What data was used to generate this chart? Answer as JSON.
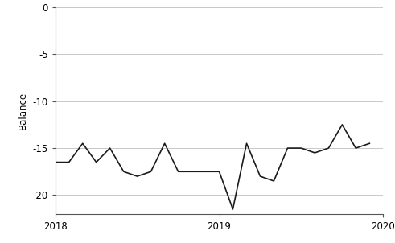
{
  "x": [
    2018.0,
    2018.083,
    2018.167,
    2018.25,
    2018.333,
    2018.417,
    2018.5,
    2018.583,
    2018.667,
    2018.75,
    2018.833,
    2018.917,
    2019.0,
    2019.083,
    2019.167,
    2019.25,
    2019.333,
    2019.417,
    2019.5,
    2019.583,
    2019.667,
    2019.75,
    2019.833,
    2019.917
  ],
  "y": [
    -16.5,
    -16.5,
    -14.5,
    -16.5,
    -15.0,
    -17.5,
    -18.0,
    -17.5,
    -14.5,
    -17.5,
    -17.5,
    -17.5,
    -17.5,
    -21.5,
    -14.5,
    -18.0,
    -18.5,
    -15.0,
    -15.0,
    -15.5,
    -15.0,
    -12.5,
    -15.0,
    -14.5
  ],
  "xlim": [
    2018.0,
    2020.0
  ],
  "ylim": [
    -22,
    0
  ],
  "yticks": [
    0,
    -5,
    -10,
    -15,
    -20
  ],
  "xticks": [
    2018,
    2019,
    2020
  ],
  "ylabel": "Balance",
  "line_color": "#1a1a1a",
  "line_width": 1.2,
  "grid_color": "#c8c8c8",
  "background_color": "#ffffff",
  "spine_color": "#555555"
}
